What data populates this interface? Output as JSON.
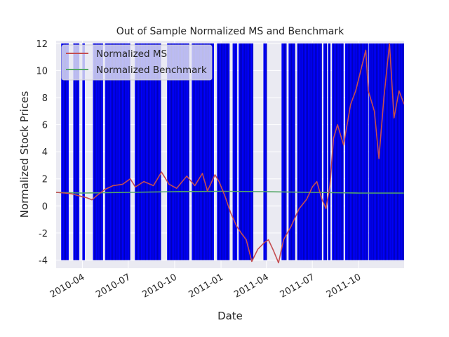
{
  "chart_data": {
    "type": "line",
    "title": "Out of Sample Normalized MS and Benchmark",
    "xlabel": "Date",
    "ylabel": "Normalized Stock Prices",
    "xlim": [
      "2010-02-08",
      "2011-12-30"
    ],
    "ylim": [
      -4.6,
      12.2
    ],
    "x_ticks": [
      "2010-04",
      "2010-07",
      "2010-10",
      "2011-01",
      "2011-04",
      "2011-07",
      "2011-10"
    ],
    "y_ticks": [
      -4,
      -2,
      0,
      2,
      4,
      6,
      8,
      10,
      12
    ],
    "grid": true,
    "legend_position": "top-left",
    "colors": {
      "background": "#eaeaf2",
      "grid": "#ffffff",
      "bars": "#0000ff",
      "bar_edge": "#000000",
      "ms": "#c44e52",
      "benchmark": "#55a868"
    },
    "series": [
      {
        "name": "Normalized MS",
        "color": "#c44e52",
        "points": [
          [
            "2010-02-08",
            1.0
          ],
          [
            "2010-02-25",
            0.95
          ],
          [
            "2010-03-10",
            0.9
          ],
          [
            "2010-03-25",
            0.75
          ],
          [
            "2010-04-10",
            0.6
          ],
          [
            "2010-04-20",
            0.45
          ],
          [
            "2010-05-01",
            0.8
          ],
          [
            "2010-05-15",
            1.2
          ],
          [
            "2010-06-01",
            1.5
          ],
          [
            "2010-06-20",
            1.6
          ],
          [
            "2010-07-05",
            2.0
          ],
          [
            "2010-07-15",
            1.4
          ],
          [
            "2010-08-01",
            1.8
          ],
          [
            "2010-08-20",
            1.5
          ],
          [
            "2010-09-05",
            2.5
          ],
          [
            "2010-09-20",
            1.6
          ],
          [
            "2010-10-05",
            1.3
          ],
          [
            "2010-10-25",
            2.2
          ],
          [
            "2010-11-10",
            1.5
          ],
          [
            "2010-11-25",
            2.4
          ],
          [
            "2010-12-05",
            1.1
          ],
          [
            "2010-12-20",
            2.3
          ],
          [
            "2010-12-28",
            1.8
          ],
          [
            "2011-01-08",
            0.8
          ],
          [
            "2011-01-20",
            -0.5
          ],
          [
            "2011-02-01",
            -1.5
          ],
          [
            "2011-02-10",
            -2.0
          ],
          [
            "2011-02-20",
            -2.5
          ],
          [
            "2011-03-03",
            -4.1
          ],
          [
            "2011-03-15",
            -3.2
          ],
          [
            "2011-03-28",
            -2.7
          ],
          [
            "2011-04-05",
            -2.5
          ],
          [
            "2011-04-15",
            -3.3
          ],
          [
            "2011-04-25",
            -4.2
          ],
          [
            "2011-05-05",
            -2.5
          ],
          [
            "2011-05-20",
            -1.5
          ],
          [
            "2011-06-05",
            -0.2
          ],
          [
            "2011-06-20",
            0.5
          ],
          [
            "2011-07-01",
            1.4
          ],
          [
            "2011-07-10",
            1.8
          ],
          [
            "2011-07-20",
            0.5
          ],
          [
            "2011-07-28",
            -0.2
          ],
          [
            "2011-08-05",
            1.5
          ],
          [
            "2011-08-12",
            5.0
          ],
          [
            "2011-08-20",
            6.0
          ],
          [
            "2011-09-01",
            4.5
          ],
          [
            "2011-09-15",
            7.5
          ],
          [
            "2011-09-25",
            8.5
          ],
          [
            "2011-10-05",
            10.0
          ],
          [
            "2011-10-15",
            11.5
          ],
          [
            "2011-10-20",
            8.5
          ],
          [
            "2011-11-01",
            7.0
          ],
          [
            "2011-11-10",
            3.5
          ],
          [
            "2011-11-20",
            8.0
          ],
          [
            "2011-12-01",
            12.0
          ],
          [
            "2011-12-10",
            6.5
          ],
          [
            "2011-12-20",
            8.5
          ],
          [
            "2011-12-30",
            7.5
          ]
        ]
      },
      {
        "name": "Normalized Benchmark",
        "color": "#55a868",
        "points": [
          [
            "2010-02-08",
            1.0
          ],
          [
            "2010-04-01",
            0.95
          ],
          [
            "2010-07-01",
            1.0
          ],
          [
            "2010-10-01",
            1.05
          ],
          [
            "2011-01-01",
            1.08
          ],
          [
            "2011-04-01",
            1.05
          ],
          [
            "2011-07-01",
            1.0
          ],
          [
            "2011-10-01",
            0.95
          ],
          [
            "2011-12-30",
            0.95
          ]
        ]
      }
    ],
    "shaded_intervals": {
      "label": "",
      "y_range": [
        -4,
        12
      ],
      "intervals": [
        [
          "2010-02-18",
          "2010-03-05"
        ],
        [
          "2010-03-14",
          "2010-03-26"
        ],
        [
          "2010-04-01",
          "2010-04-06"
        ],
        [
          "2010-04-22",
          "2010-05-12"
        ],
        [
          "2010-05-16",
          "2010-07-05"
        ],
        [
          "2010-07-14",
          "2010-09-04"
        ],
        [
          "2010-09-16",
          "2010-10-30"
        ],
        [
          "2010-11-04",
          "2010-12-18"
        ],
        [
          "2010-12-24",
          "2011-01-18"
        ],
        [
          "2011-01-24",
          "2011-02-02"
        ],
        [
          "2011-02-05",
          "2011-03-06"
        ],
        [
          "2011-03-26",
          "2011-04-02"
        ],
        [
          "2011-05-01",
          "2011-05-11"
        ],
        [
          "2011-05-15",
          "2011-05-28"
        ],
        [
          "2011-06-01",
          "2011-07-20"
        ],
        [
          "2011-07-23",
          "2011-07-30"
        ],
        [
          "2011-08-01",
          "2011-08-06"
        ],
        [
          "2011-08-09",
          "2011-09-01"
        ],
        [
          "2011-09-04",
          "2011-10-20"
        ],
        [
          "2011-10-21",
          "2011-12-30"
        ]
      ]
    }
  }
}
